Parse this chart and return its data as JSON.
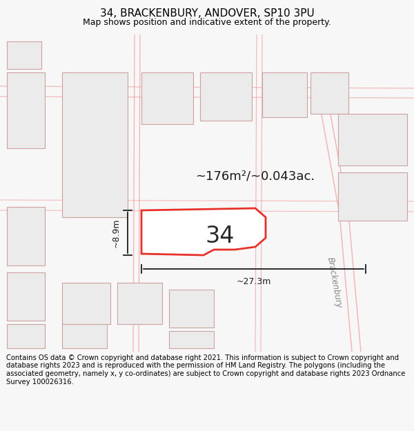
{
  "title": "34, BRACKENBURY, ANDOVER, SP10 3PU",
  "subtitle": "Map shows position and indicative extent of the property.",
  "footer": "Contains OS data © Crown copyright and database right 2021. This information is subject to Crown copyright and database rights 2023 and is reproduced with the permission of HM Land Registry. The polygons (including the associated geometry, namely x, y co-ordinates) are subject to Crown copyright and database rights 2023 Ordnance Survey 100026316.",
  "area_text": "~176m²/~0.043ac.",
  "house_number": "34",
  "dim_width": "~27.3m",
  "dim_height": "~8.9m",
  "road_label": "Brackenbury",
  "bg_color": "#f7f7f7",
  "map_bg": "#ffffff",
  "plot_fill": "#ffffff",
  "plot_edge": "#e8302a",
  "neighbour_fill": "#ebebeb",
  "neighbour_edge": "#e8302a",
  "road_line_color": "#f0a0a0",
  "title_fontsize": 11,
  "subtitle_fontsize": 9,
  "footer_fontsize": 7.2
}
